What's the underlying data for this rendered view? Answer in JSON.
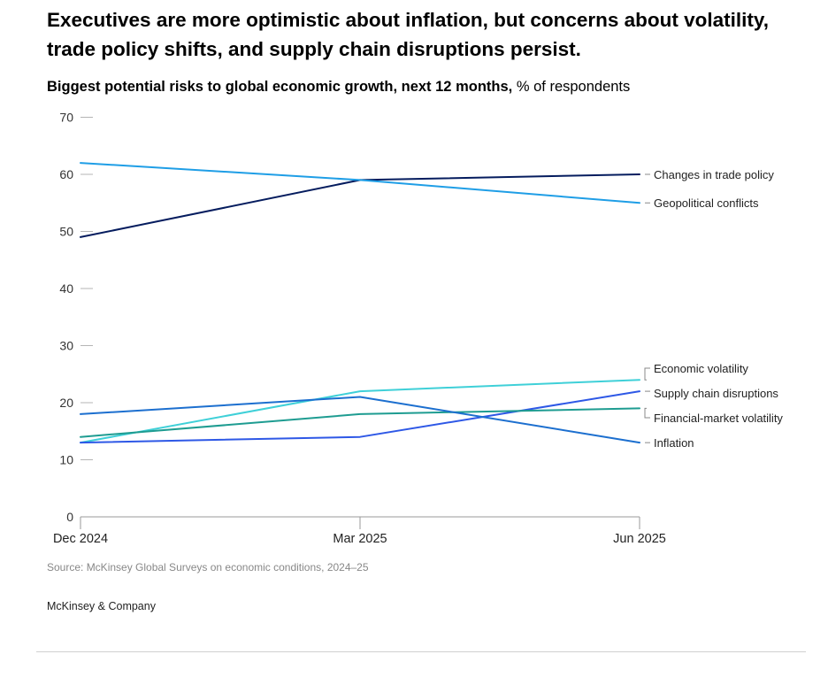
{
  "title": "Executives are more optimistic about inflation, but concerns about volatility, trade policy shifts, and supply chain disruptions persist.",
  "subtitle": {
    "bold": "Biggest potential risks to global economic growth, next 12 months,",
    "regular": "% of respondents"
  },
  "source": "Source: McKinsey Global Surveys on economic conditions, 2024–25",
  "brand": "McKinsey & Company",
  "chart_data": {
    "type": "line",
    "x": [
      "Dec 2024",
      "Mar 2025",
      "Jun 2025"
    ],
    "ylim": [
      0,
      70
    ],
    "yticks": [
      0,
      10,
      20,
      30,
      40,
      50,
      60,
      70
    ],
    "grid": false,
    "legend": "direct labels at right end of lines",
    "series": [
      {
        "name": "Changes in trade policy",
        "values": [
          49,
          59,
          60
        ],
        "color": "#051c5e"
      },
      {
        "name": "Geopolitical conflicts",
        "values": [
          62,
          59,
          55
        ],
        "color": "#1f9ee6"
      },
      {
        "name": "Economic volatility",
        "values": [
          13,
          22,
          24
        ],
        "color": "#3fd0d8"
      },
      {
        "name": "Supply chain disruptions",
        "values": [
          13,
          14,
          22
        ],
        "color": "#2e58e6"
      },
      {
        "name": "Financial-market volatility",
        "values": [
          14,
          18,
          19
        ],
        "color": "#1e9c91"
      },
      {
        "name": "Inflation",
        "values": [
          18,
          21,
          13
        ],
        "color": "#1c6fcf"
      }
    ]
  }
}
